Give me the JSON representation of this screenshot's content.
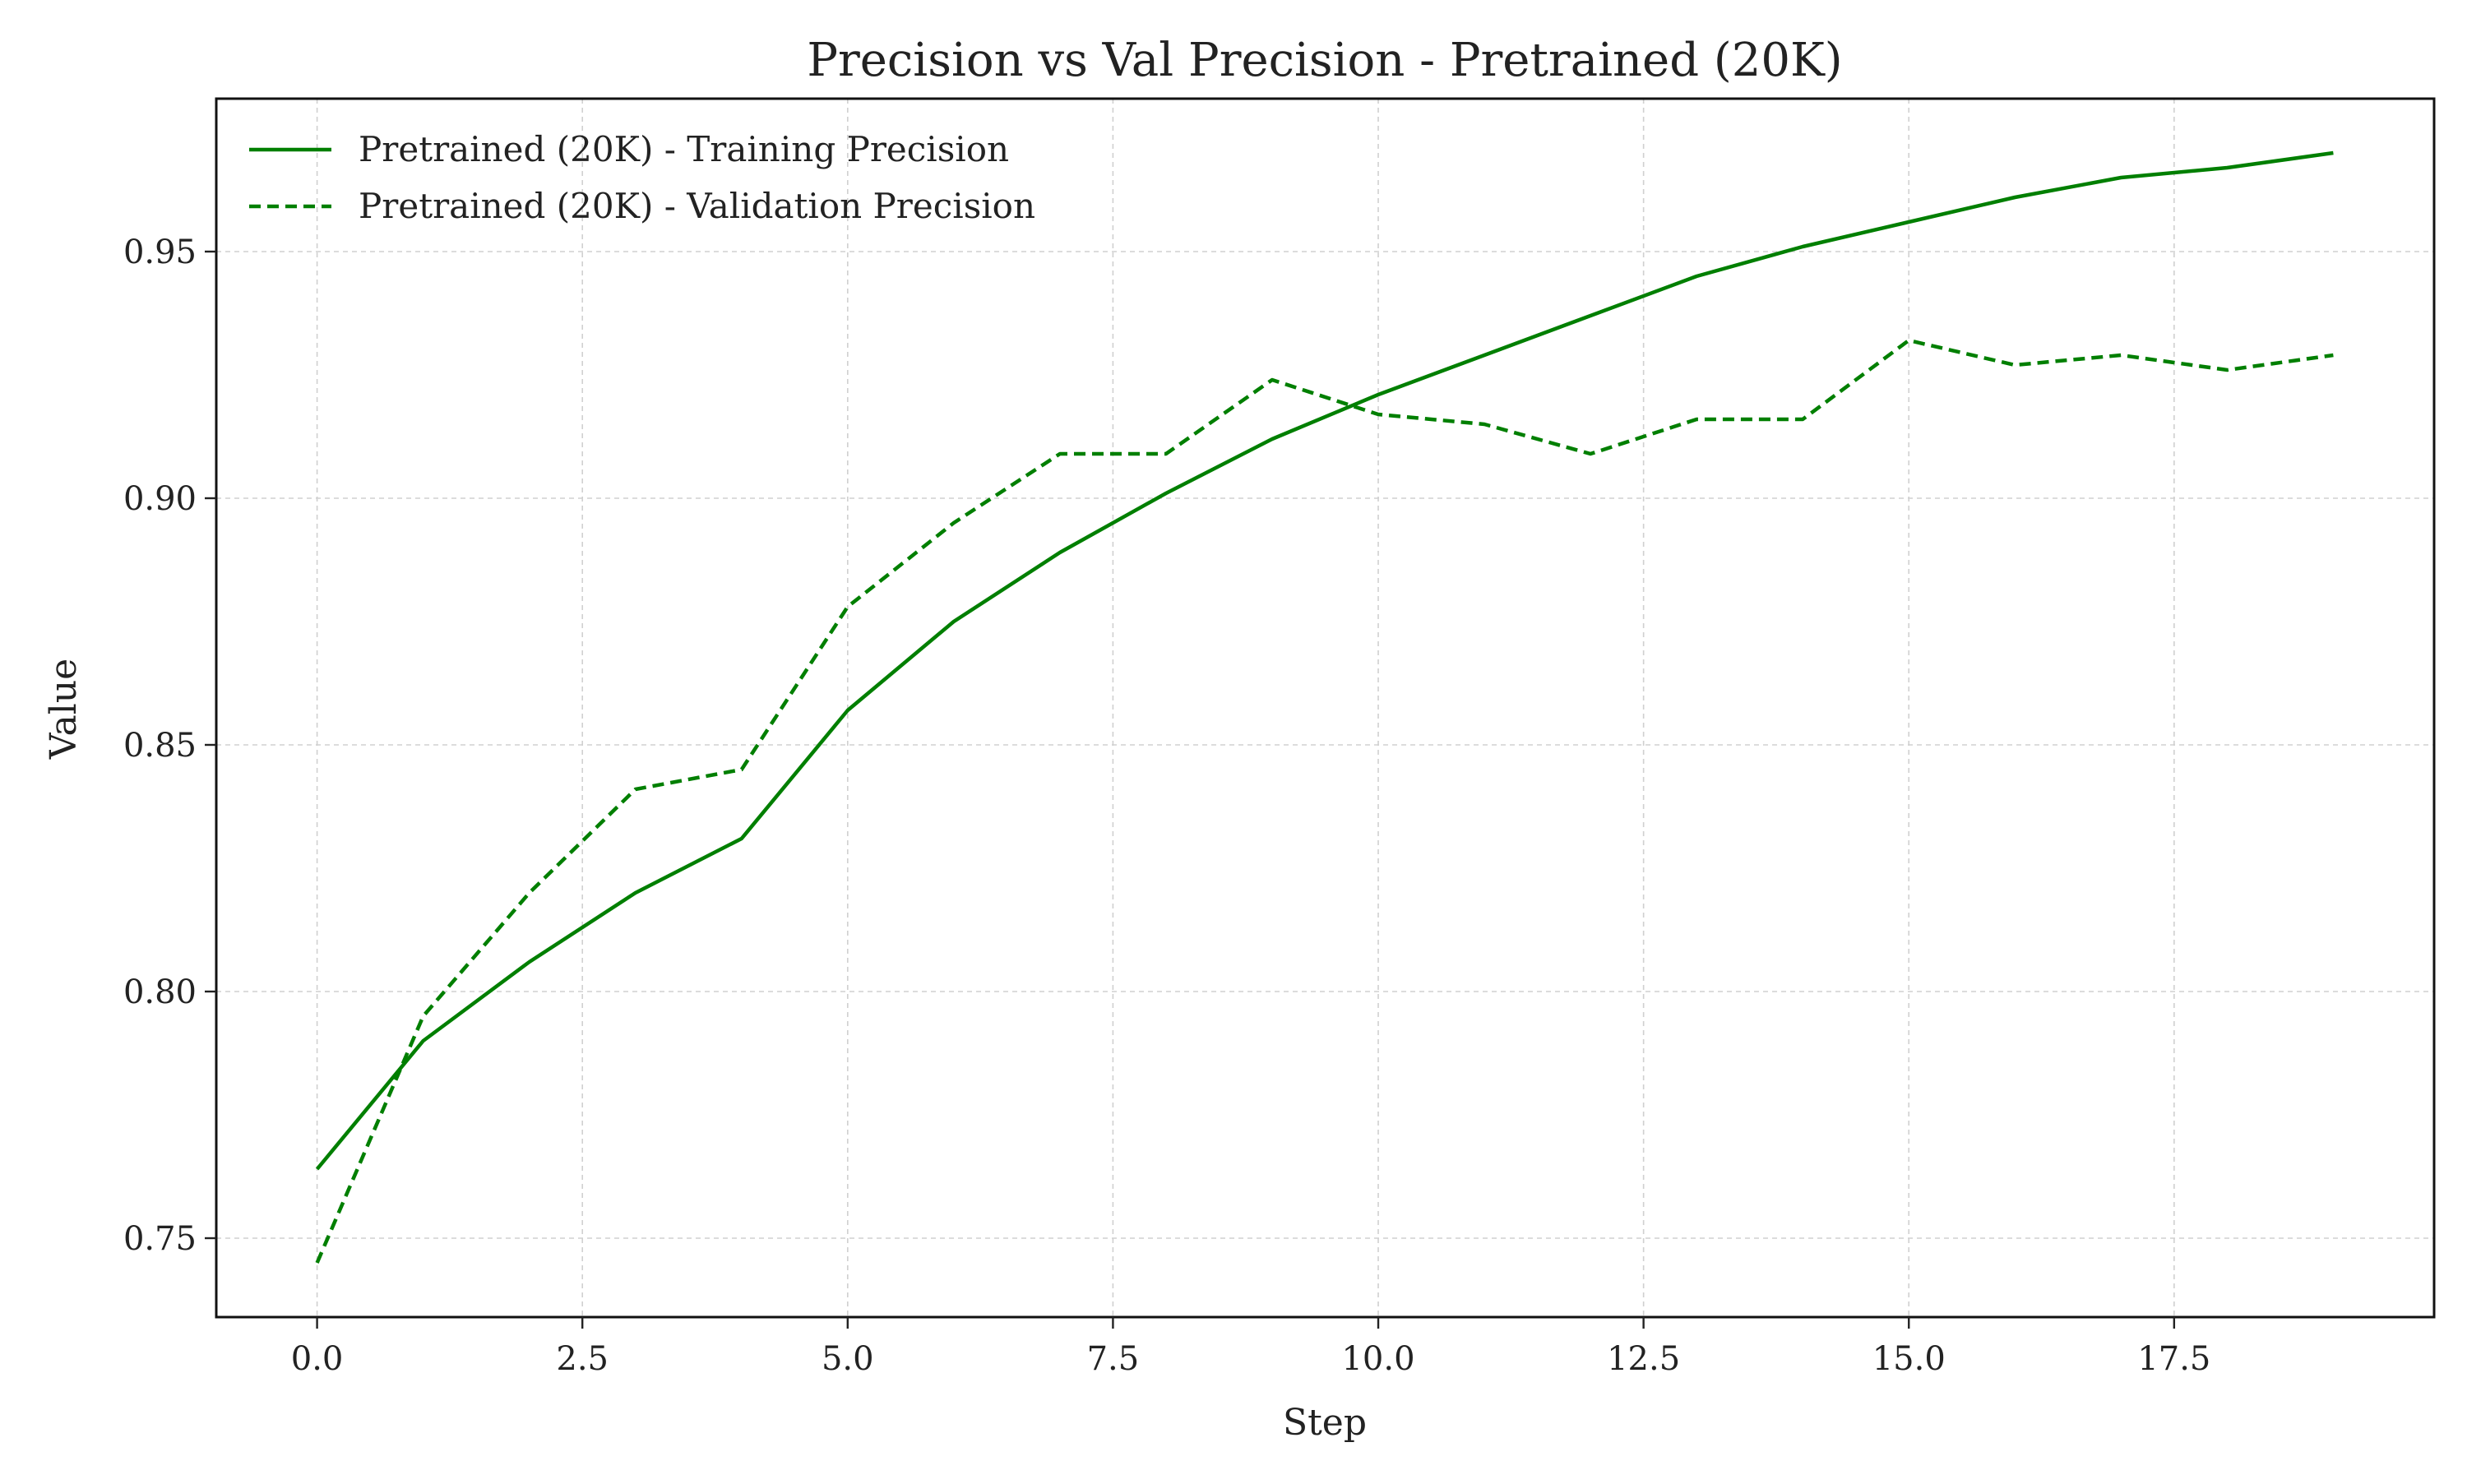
{
  "chart_data": {
    "type": "line",
    "title": "Precision vs Val Precision - Pretrained (20K)",
    "xlabel": "Step",
    "ylabel": "Value",
    "xlim": [
      -0.95,
      19.95
    ],
    "ylim": [
      0.734,
      0.981
    ],
    "xticks": [
      0,
      2.5,
      5,
      7.5,
      10,
      12.5,
      15,
      17.5
    ],
    "xtick_labels": [
      "0.0",
      "2.5",
      "5.0",
      "7.5",
      "10.0",
      "12.5",
      "15.0",
      "17.5"
    ],
    "yticks": [
      0.75,
      0.8,
      0.85,
      0.9,
      0.95
    ],
    "ytick_labels": [
      "0.75",
      "0.80",
      "0.85",
      "0.90",
      "0.95"
    ],
    "grid": true,
    "legend_position": "top-left",
    "x": [
      0,
      1,
      2,
      3,
      4,
      5,
      6,
      7,
      8,
      9,
      10,
      11,
      12,
      13,
      14,
      15,
      16,
      17,
      18,
      19
    ],
    "series": [
      {
        "name": "Pretrained (20K) - Training Precision",
        "color": "#007f00",
        "style": "solid",
        "values": [
          0.764,
          0.79,
          0.806,
          0.82,
          0.831,
          0.857,
          0.875,
          0.889,
          0.901,
          0.912,
          0.921,
          0.929,
          0.937,
          0.945,
          0.951,
          0.956,
          0.961,
          0.965,
          0.967,
          0.97
        ]
      },
      {
        "name": "Pretrained (20K) - Validation Precision",
        "color": "#007f00",
        "style": "dashed",
        "values": [
          0.745,
          0.795,
          0.82,
          0.841,
          0.845,
          0.878,
          0.895,
          0.909,
          0.909,
          0.924,
          0.917,
          0.915,
          0.909,
          0.916,
          0.916,
          0.932,
          0.927,
          0.929,
          0.926,
          0.929
        ]
      }
    ]
  }
}
